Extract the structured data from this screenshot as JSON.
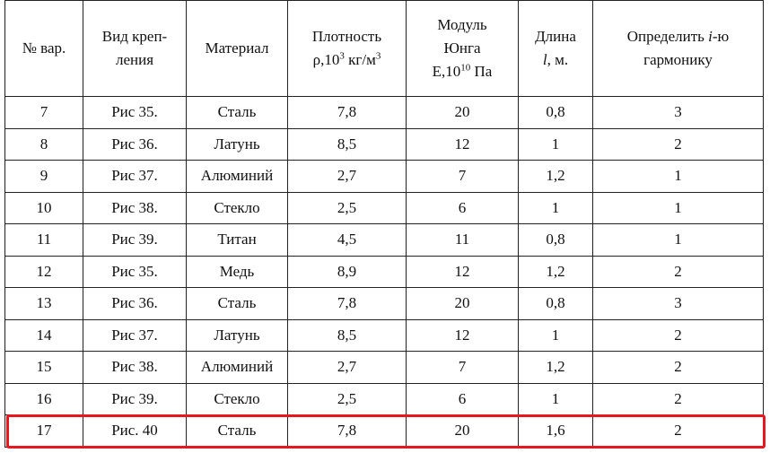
{
  "table": {
    "header": [
      [
        [
          {
            "text": "№ вар."
          }
        ]
      ],
      [
        [
          {
            "text": "Вид креп-"
          }
        ],
        [
          {
            "text": "ления"
          }
        ]
      ],
      [
        [
          {
            "text": "Материал"
          }
        ]
      ],
      [
        [
          {
            "text": "Плотность"
          }
        ],
        [
          {
            "text": "ρ,10"
          },
          {
            "text": "3",
            "style": "sup"
          },
          {
            "text": " кг/м"
          },
          {
            "text": "3",
            "style": "sup"
          }
        ]
      ],
      [
        [
          {
            "text": "Модуль"
          }
        ],
        [
          {
            "text": "Юнга"
          }
        ],
        [
          {
            "text": "E,10"
          },
          {
            "text": "10",
            "style": "sup"
          },
          {
            "text": " Па"
          }
        ]
      ],
      [
        [
          {
            "text": "Длина"
          }
        ],
        [
          {
            "text": "l",
            "style": "italic"
          },
          {
            "text": ", м."
          }
        ]
      ],
      [
        [
          {
            "text": "Определить "
          },
          {
            "text": "i",
            "style": "italic"
          },
          {
            "text": "-ю"
          }
        ],
        [
          {
            "text": "гармонику"
          }
        ]
      ]
    ],
    "rows": [
      {
        "cells": [
          "7",
          "Рис 35.",
          "Сталь",
          "7,8",
          "20",
          "0,8",
          "3"
        ]
      },
      {
        "cells": [
          "8",
          "Рис 36.",
          "Латунь",
          "8,5",
          "12",
          "1",
          "2"
        ]
      },
      {
        "cells": [
          "9",
          "Рис 37.",
          "Алюминий",
          "2,7",
          "7",
          "1,2",
          "1"
        ]
      },
      {
        "cells": [
          "10",
          "Рис 38.",
          "Стекло",
          "2,5",
          "6",
          "1",
          "1"
        ]
      },
      {
        "cells": [
          "11",
          "Рис 39.",
          "Титан",
          "4,5",
          "11",
          "0,8",
          "1"
        ]
      },
      {
        "cells": [
          "12",
          "Рис 35.",
          "Медь",
          "8,9",
          "12",
          "1,2",
          "2"
        ]
      },
      {
        "cells": [
          "13",
          "Рис 36.",
          "Сталь",
          "7,8",
          "20",
          "0,8",
          "3"
        ]
      },
      {
        "cells": [
          "14",
          "Рис 37.",
          "Латунь",
          "8,5",
          "12",
          "1",
          "2"
        ]
      },
      {
        "cells": [
          "15",
          "Рис 38.",
          "Алюминий",
          "2,7",
          "7",
          "1,2",
          "2"
        ]
      },
      {
        "cells": [
          "16",
          "Рис 39.",
          "Стекло",
          "2,5",
          "6",
          "1",
          "2"
        ]
      },
      {
        "cells": [
          "17",
          "Рис. 40",
          "Сталь",
          "7,8",
          "20",
          "1,6",
          "2"
        ],
        "highlighted": true
      }
    ]
  }
}
